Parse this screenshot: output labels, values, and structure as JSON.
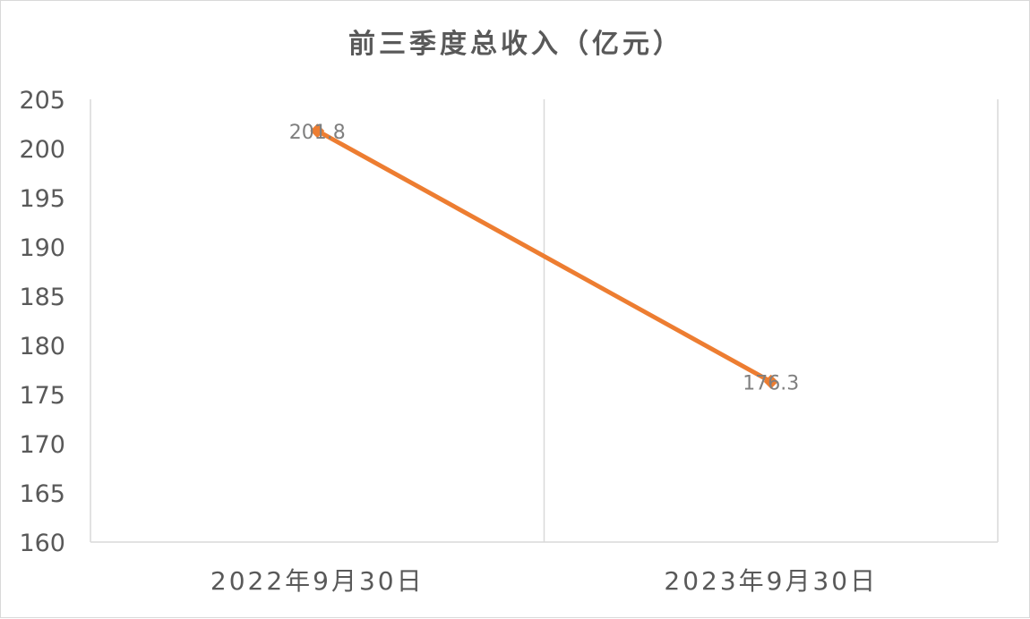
{
  "chart_data": {
    "type": "line",
    "title": "前三季度总收入（亿元）",
    "categories": [
      "2022年9月30日",
      "2023年9月30日"
    ],
    "series": [
      {
        "values": [
          201.8,
          176.3
        ],
        "color": "#ed7d31"
      }
    ],
    "data_labels": [
      "201.8",
      "176.3"
    ],
    "ylim": [
      160,
      205
    ],
    "yticks": [
      "160",
      "165",
      "170",
      "175",
      "180",
      "185",
      "190",
      "195",
      "200",
      "205"
    ],
    "xlabel": "",
    "ylabel": "",
    "grid": "vertical",
    "legend": "none"
  }
}
